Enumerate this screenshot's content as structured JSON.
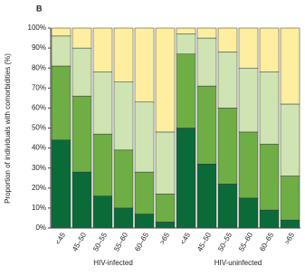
{
  "chart_data": {
    "type": "stacked-bar",
    "panel": "B",
    "ylabel": "Proportion of individuals with comorbidities (%)",
    "categories": [
      "<45",
      "45–50",
      "50–55",
      "55–60",
      "60–65",
      ">65",
      "<45",
      "45–50",
      "50–55",
      "55–60",
      "60–65",
      ">65"
    ],
    "groups": [
      "HIV-infected",
      "HIV-uninfected"
    ],
    "series": [
      {
        "color": "#0b6b38",
        "values": [
          44,
          28,
          16,
          10,
          7,
          3,
          50,
          32,
          22,
          15,
          9,
          4
        ]
      },
      {
        "color": "#6fae45",
        "values": [
          37,
          38,
          31,
          29,
          21,
          14,
          37,
          39,
          38,
          33,
          33,
          22
        ]
      },
      {
        "color": "#cfe3b3",
        "values": [
          15,
          24,
          31,
          34,
          35,
          31,
          10,
          24,
          28,
          32,
          36,
          36
        ]
      },
      {
        "color": "#fdeea0",
        "values": [
          4,
          10,
          22,
          27,
          37,
          52,
          3,
          5,
          12,
          20,
          22,
          38
        ]
      }
    ],
    "ylim": [
      0,
      100
    ],
    "yticks": [
      {
        "value": 0,
        "label": "0%"
      },
      {
        "value": 10,
        "label": "10%"
      },
      {
        "value": 20,
        "label": "20%"
      },
      {
        "value": 30,
        "label": "30%"
      },
      {
        "value": 40,
        "label": "40%"
      },
      {
        "value": 50,
        "label": "50%"
      },
      {
        "value": 60,
        "label": "60%"
      },
      {
        "value": 70,
        "label": "70%"
      },
      {
        "value": 80,
        "label": "80%"
      },
      {
        "value": 90,
        "label": "90%"
      },
      {
        "value": 100,
        "label": "100%"
      }
    ]
  }
}
